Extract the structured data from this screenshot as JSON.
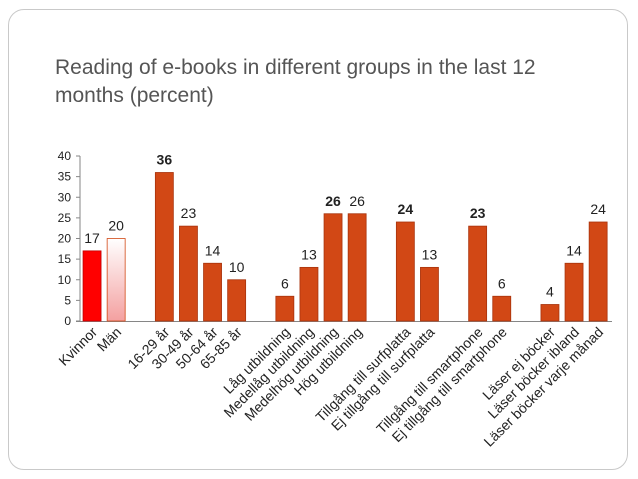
{
  "slide": {
    "title": "Reading of e-books in different groups in the last 12 months (percent)"
  },
  "chart_data": {
    "type": "bar",
    "title": "Reading of e-books in different groups in the last 12 months (percent)",
    "xlabel": "",
    "ylabel": "",
    "ylim": [
      0,
      40
    ],
    "yticks": [
      0,
      5,
      10,
      15,
      20,
      25,
      30,
      35,
      40
    ],
    "grid": false,
    "colors": {
      "bar": "#d24815",
      "bar_edge": "#a8330c",
      "women": "#ff0000",
      "men_top": "#ffffff",
      "men_bottom": "#f4a0a0",
      "men_edge": "#d24815"
    },
    "groups": [
      {
        "name": "gender",
        "categories": [
          "Kvinnor",
          "Män"
        ],
        "values": [
          17,
          20
        ],
        "bold": [
          false,
          false
        ]
      },
      {
        "name": "age",
        "categories": [
          "16-29 år",
          "30-49 år",
          "50-64 år",
          "65-85 år"
        ],
        "values": [
          36,
          23,
          14,
          10
        ],
        "bold": [
          true,
          false,
          false,
          false
        ]
      },
      {
        "name": "education",
        "categories": [
          "Låg utbildning",
          "Medellåg utbildning",
          "Medelhög utbildning",
          "Hög utbildning"
        ],
        "values": [
          6,
          13,
          26,
          26
        ],
        "bold": [
          false,
          false,
          true,
          false
        ]
      },
      {
        "name": "tablet",
        "categories": [
          "Tillgång till surfplatta",
          "Ej tillgång till surfplatta"
        ],
        "values": [
          24,
          13
        ],
        "bold": [
          true,
          false
        ]
      },
      {
        "name": "smartphone",
        "categories": [
          "Tillgång till smartphone",
          "Ej tillgång till smartphone"
        ],
        "values": [
          23,
          6
        ],
        "bold": [
          true,
          false
        ]
      },
      {
        "name": "book-reading",
        "categories": [
          "Läser ej böcker",
          "Läser böcker ibland",
          "Läser böcker varje månad"
        ],
        "values": [
          4,
          14,
          24
        ],
        "bold": [
          false,
          false,
          false
        ]
      }
    ]
  }
}
